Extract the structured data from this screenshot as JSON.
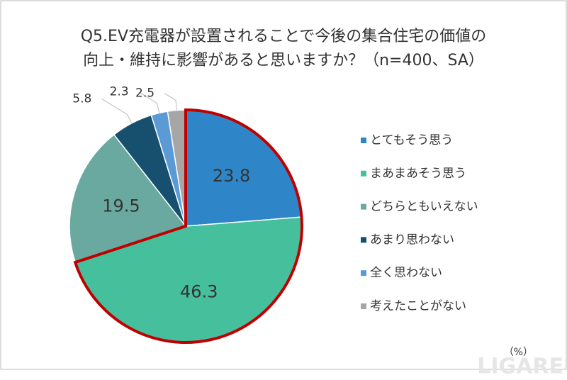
{
  "chart_data": {
    "type": "pie",
    "title": [
      "Q5.EV充電器が設置されることで今後の集合住宅の価値の",
      "向上・維持に影響があると思いますか？（n=400、SA）"
    ],
    "categories": [
      "とてもそう思う",
      "まあまあそう思う",
      "どちらともいえない",
      "あまり思わない",
      "全く思わない",
      "考えたことがない"
    ],
    "values": [
      23.8,
      46.3,
      19.5,
      5.8,
      2.3,
      2.5
    ],
    "colors": [
      "#2e86c8",
      "#45bf9c",
      "#6aa9a0",
      "#17506f",
      "#5b9bd5",
      "#a6a6a6"
    ],
    "highlight": [
      0,
      1
    ],
    "highlight_color": "#c00000",
    "unit": "（%）",
    "watermark": "LIGARE"
  }
}
